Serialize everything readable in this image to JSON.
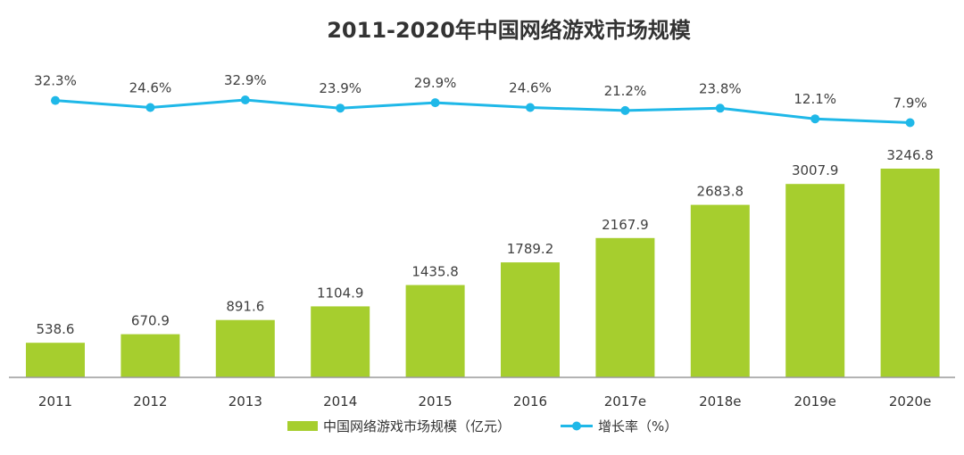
{
  "chart_data": {
    "type": "bar",
    "title": "2011-2020年中国网络游戏市场规模",
    "categories": [
      "2011",
      "2012",
      "2013",
      "2014",
      "2015",
      "2016",
      "2017e",
      "2018e",
      "2019e",
      "2020e"
    ],
    "series": [
      {
        "name": "中国网络游戏市场规模（亿元）",
        "type": "bar",
        "values": [
          538.6,
          670.9,
          891.6,
          1104.9,
          1435.8,
          1789.2,
          2167.9,
          2683.8,
          3007.9,
          3246.8
        ],
        "labels": [
          "538.6",
          "670.9",
          "891.6",
          "1104.9",
          "1435.8",
          "1789.2",
          "2167.9",
          "2683.8",
          "3007.9",
          "3246.8"
        ],
        "color": "#A6CE2E"
      },
      {
        "name": "增长率（%）",
        "type": "line",
        "values": [
          32.3,
          24.6,
          32.9,
          23.9,
          29.9,
          24.6,
          21.2,
          23.8,
          12.1,
          7.9
        ],
        "labels": [
          "32.3%",
          "24.6%",
          "32.9%",
          "23.9%",
          "29.9%",
          "24.6%",
          "21.2%",
          "23.8%",
          "12.1%",
          "7.9%"
        ],
        "color": "#1FB8E8"
      }
    ],
    "legend": "bottom",
    "grid": false
  }
}
